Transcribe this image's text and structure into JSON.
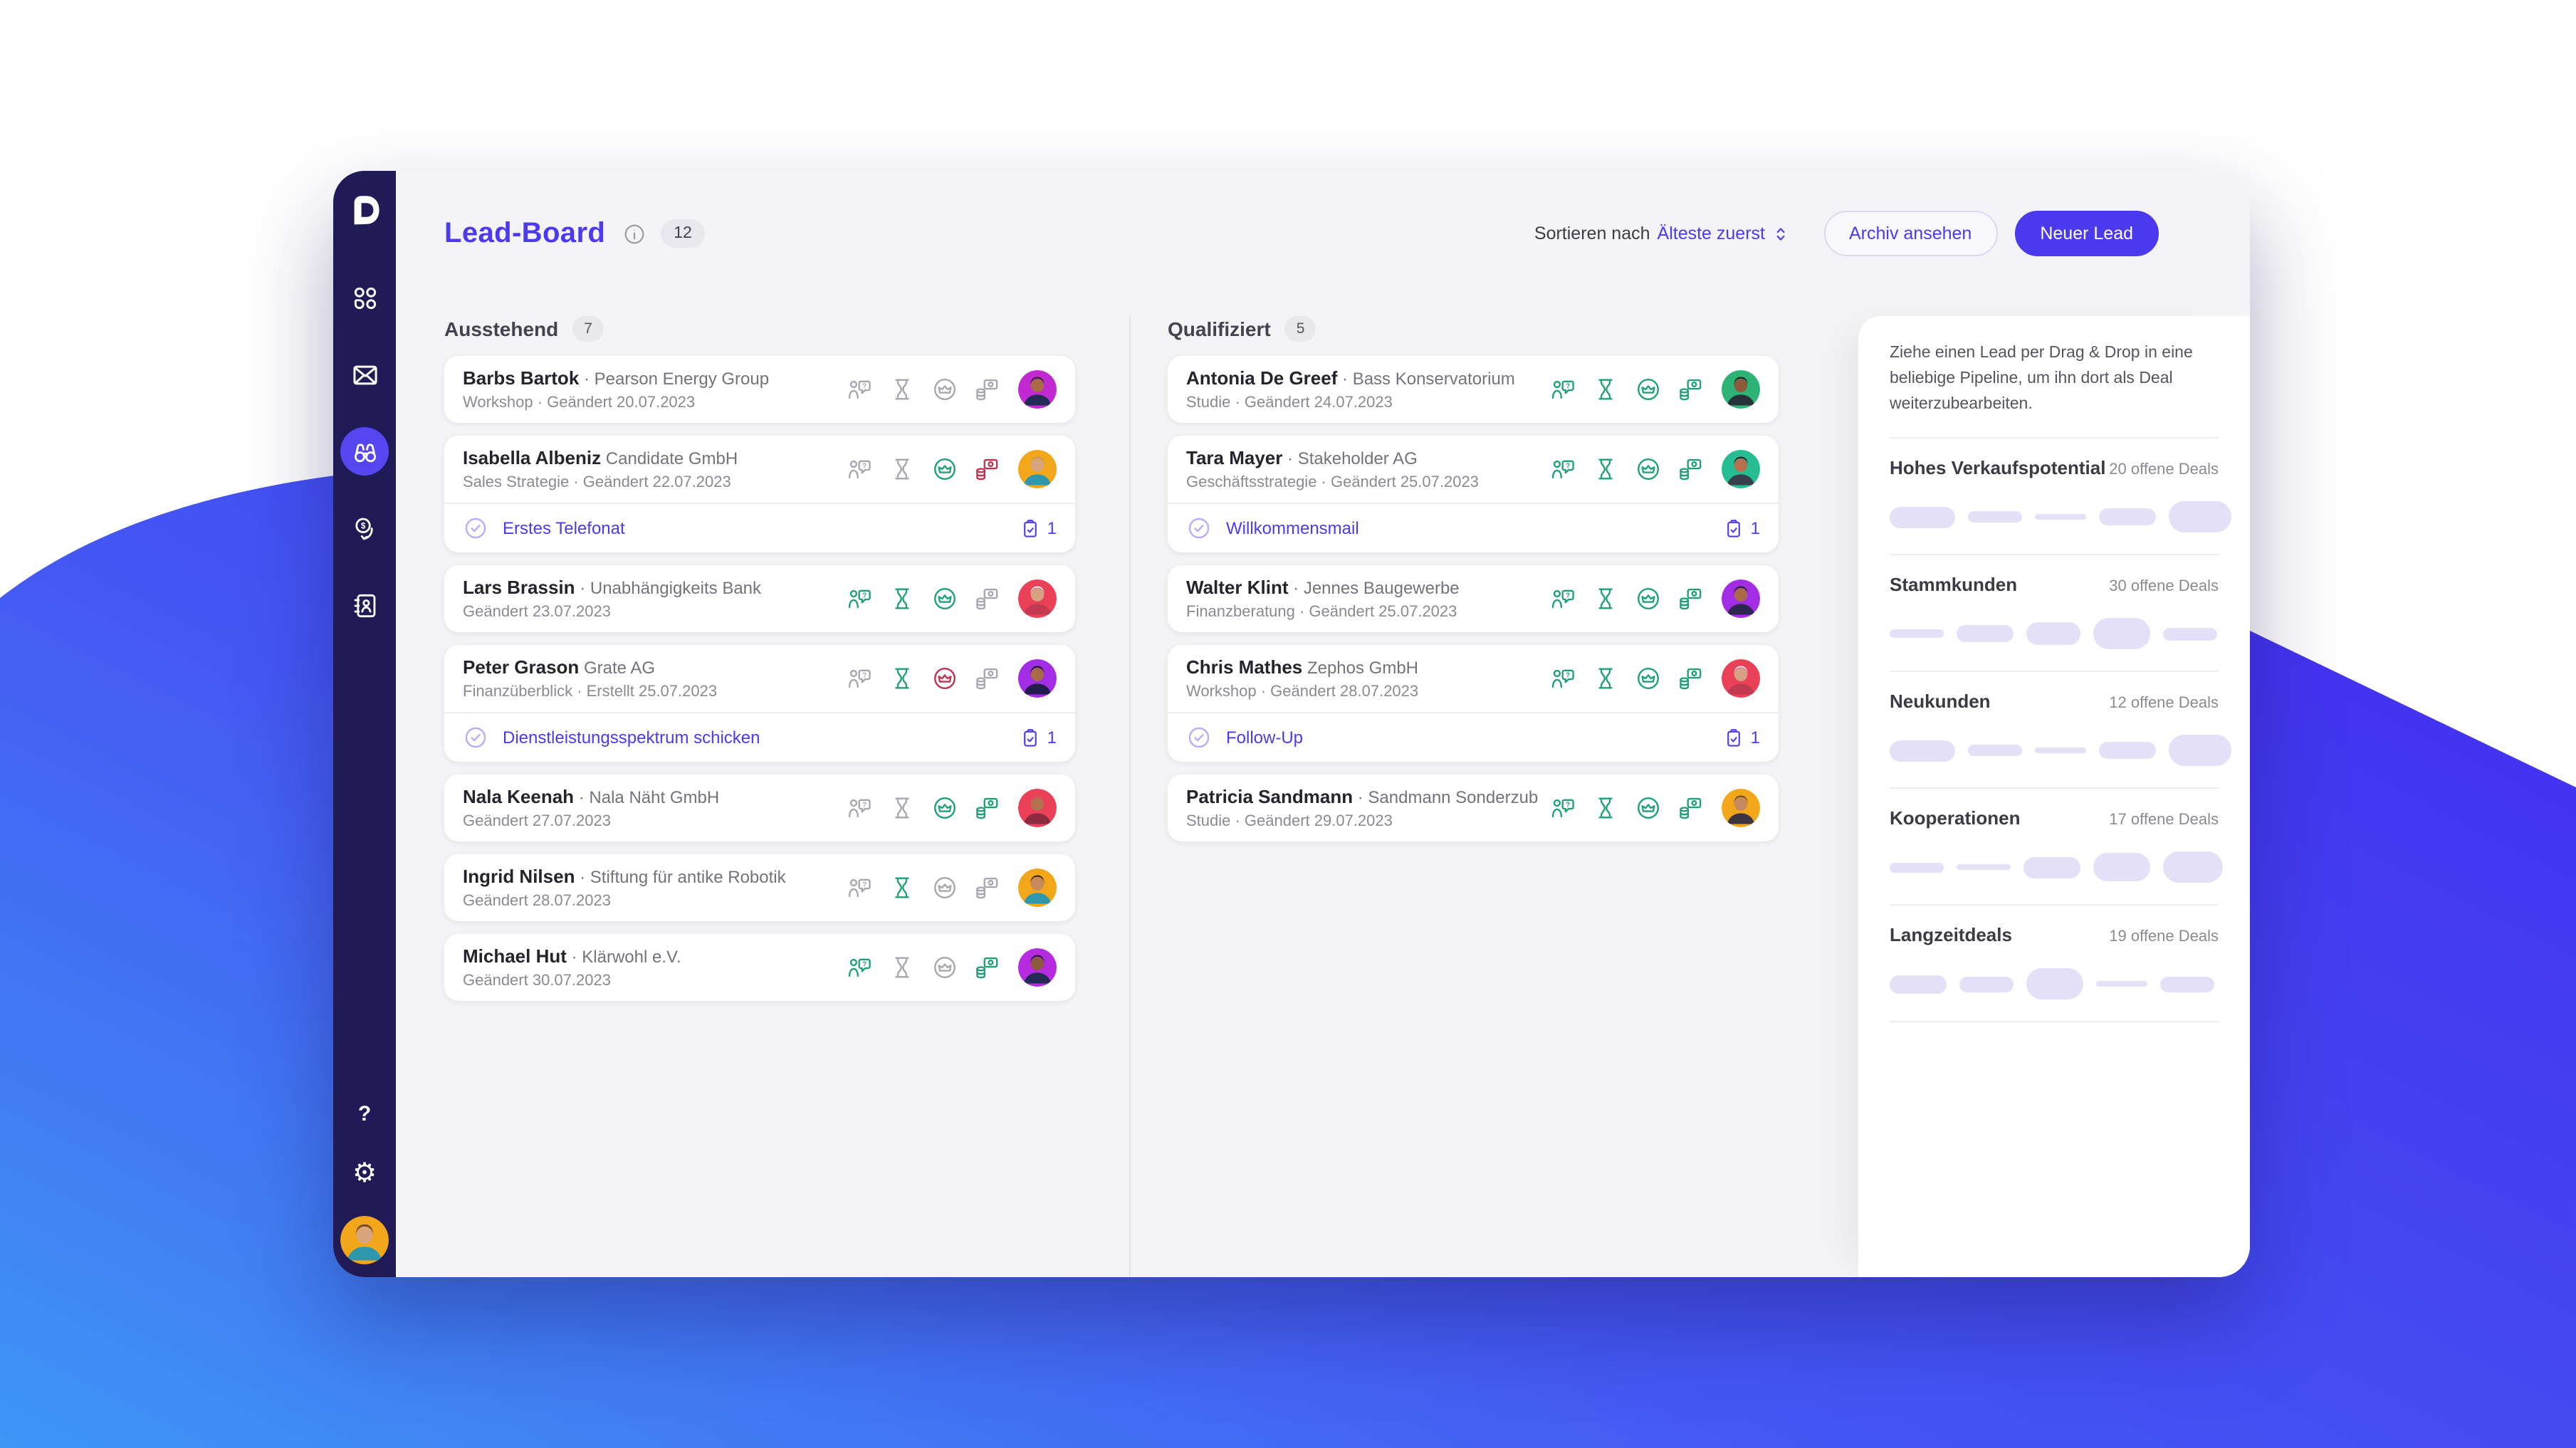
{
  "header": {
    "title": "Lead-Board",
    "count": "12",
    "sort_label": "Sortieren nach",
    "sort_value": "Älteste zuerst",
    "archive_button": "Archiv ansehen",
    "new_lead_button": "Neuer Lead"
  },
  "sidebar": {
    "items": [
      {
        "icon": "grid",
        "name": "dashboard",
        "active": false
      },
      {
        "icon": "mail",
        "name": "mail",
        "active": false
      },
      {
        "icon": "binoculars",
        "name": "leads",
        "active": true
      },
      {
        "icon": "deals",
        "name": "deals",
        "active": false
      },
      {
        "icon": "contacts",
        "name": "contacts",
        "active": false
      }
    ],
    "help_label": "?",
    "avatar": {
      "bg": "#f2a71b",
      "skin": "#d9a57e",
      "hair": "#6e4a33",
      "shirt": "#2e96ad"
    }
  },
  "columns": [
    {
      "name": "Ausstehend",
      "count": "7",
      "cards": [
        {
          "name": "Barbs Bartok",
          "sep": true,
          "org": "Pearson Energy Group",
          "meta": "Workshop · Geändert 20.07.2023",
          "icons": [
            "gray",
            "gray",
            "gray",
            "gray"
          ],
          "avatar": {
            "bg": "#c22ad1",
            "skin": "#a96a47",
            "hair": "#2f2430",
            "shirt": "#232a56"
          }
        },
        {
          "name": "Isabella Albeniz",
          "sep": false,
          "org": "Candidate GmbH",
          "meta": "Sales Strategie · Geändert 22.07.2023",
          "icons": [
            "gray",
            "gray",
            "green",
            "red"
          ],
          "avatar": {
            "bg": "#f2a71b",
            "skin": "#d9a57e",
            "hair": "#c9956b",
            "shirt": "#2e96ad"
          },
          "task": {
            "label": "Erstes Telefonat",
            "count": "1"
          }
        },
        {
          "name": "Lars Brassin",
          "sep": true,
          "org": "Unabhängigkeits Bank",
          "meta": "Geändert 23.07.2023",
          "icons": [
            "green",
            "green",
            "green",
            "gray"
          ],
          "avatar": {
            "bg": "#ea4159",
            "skin": "#d7a183",
            "hair": "#e3e3e6",
            "shirt": "#c13a50"
          }
        },
        {
          "name": "Peter Grason",
          "sep": false,
          "org": "Grate AG",
          "meta": "Finanzüberblick · Erstellt 25.07.2023",
          "icons": [
            "gray",
            "green",
            "red",
            "gray"
          ],
          "avatar": {
            "bg": "#a32de4",
            "skin": "#a96a47",
            "hair": "#1f1b2e",
            "shirt": "#231d4f"
          },
          "task": {
            "label": "Dienstleistungsspektrum schicken",
            "count": "1"
          }
        },
        {
          "name": "Nala Keenah",
          "sep": true,
          "org": "Nala Näht GmbH",
          "meta": "Geändert 27.07.2023",
          "icons": [
            "gray",
            "gray",
            "green",
            "green"
          ],
          "avatar": {
            "bg": "#ea4159",
            "skin": "#b5714d",
            "hair": "#d94f63",
            "shirt": "#8c2b3f"
          }
        },
        {
          "name": "Ingrid Nilsen",
          "sep": true,
          "org": "Stiftung für antike Robotik",
          "meta": "Geändert 28.07.2023",
          "icons": [
            "gray",
            "green",
            "gray",
            "gray"
          ],
          "avatar": {
            "bg": "#f2a71b",
            "skin": "#c78a5f",
            "hair": "#3a2a22",
            "shirt": "#2e96ad"
          }
        },
        {
          "name": "Michael Hut",
          "sep": true,
          "org": "Klärwohl e.V.",
          "meta": "Geändert 30.07.2023",
          "icons": [
            "green",
            "gray",
            "gray",
            "green"
          ],
          "avatar": {
            "bg": "#b62ae0",
            "skin": "#8d5a3b",
            "hair": "#241f38",
            "shirt": "#232a56"
          }
        }
      ]
    },
    {
      "name": "Qualifiziert",
      "count": "5",
      "cards": [
        {
          "name": "Antonia De Greef",
          "sep": true,
          "org": "Bass Konservatorium",
          "meta": "Studie · Geändert 24.07.2023",
          "icons": [
            "green",
            "green",
            "green",
            "green"
          ],
          "avatar": {
            "bg": "#2eb377",
            "skin": "#8d5a3b",
            "hair": "#1f1b24",
            "shirt": "#27313a"
          }
        },
        {
          "name": "Tara Mayer",
          "sep": true,
          "org": "Stakeholder AG",
          "meta": "Geschäftsstrategie · Geändert 25.07.2023",
          "icons": [
            "green",
            "green",
            "green",
            "green"
          ],
          "avatar": {
            "bg": "#27bd92",
            "skin": "#b5714d",
            "hair": "#221d2b",
            "shirt": "#35404c"
          },
          "task": {
            "label": "Willkommensmail",
            "count": "1"
          }
        },
        {
          "name": "Walter Klint",
          "sep": true,
          "org": "Jennes Baugewerbe",
          "meta": "Finanzberatung · Geändert 25.07.2023",
          "icons": [
            "green",
            "green",
            "green",
            "green"
          ],
          "avatar": {
            "bg": "#a32de4",
            "skin": "#a96a47",
            "hair": "#2b2133",
            "shirt": "#2b2550"
          }
        },
        {
          "name": "Chris Mathes",
          "sep": false,
          "org": "Zephos GmbH",
          "meta": "Workshop · Geändert 28.07.2023",
          "icons": [
            "green",
            "green",
            "green",
            "green"
          ],
          "avatar": {
            "bg": "#ea4159",
            "skin": "#d7a183",
            "hair": "#d9d9dd",
            "shirt": "#c13a50"
          },
          "task": {
            "label": "Follow-Up",
            "count": "1"
          }
        },
        {
          "name": "Patricia Sandmann",
          "sep": true,
          "org": "Sandmann Sonderzubehör",
          "meta": "Studie · Geändert 29.07.2023",
          "icons": [
            "green",
            "green",
            "green",
            "green"
          ],
          "avatar": {
            "bg": "#f2a71b",
            "skin": "#c78a5f",
            "hair": "#6e4a33",
            "shirt": "#3b3542"
          }
        }
      ]
    }
  ],
  "panel": {
    "hint": "Ziehe einen Lead per Drag & Drop in eine beliebige Pipeline, um ihn dort als Deal weiterzubearbeiten.",
    "pipelines": [
      {
        "name": "Hohes Verkaufspotential",
        "deals": "20 offene Deals",
        "pills": [
          [
            46,
            15
          ],
          [
            38,
            8
          ],
          [
            36,
            4
          ],
          [
            40,
            12
          ],
          [
            44,
            22
          ]
        ]
      },
      {
        "name": "Stammkunden",
        "deals": "30 offene Deals",
        "pills": [
          [
            38,
            6
          ],
          [
            40,
            12
          ],
          [
            38,
            16
          ],
          [
            40,
            22
          ],
          [
            38,
            9
          ]
        ]
      },
      {
        "name": "Neukunden",
        "deals": "12 offene Deals",
        "pills": [
          [
            46,
            15
          ],
          [
            38,
            8
          ],
          [
            36,
            4
          ],
          [
            40,
            12
          ],
          [
            44,
            22
          ]
        ]
      },
      {
        "name": "Kooperationen",
        "deals": "17 offene Deals",
        "pills": [
          [
            38,
            7
          ],
          [
            38,
            4
          ],
          [
            40,
            15
          ],
          [
            40,
            20
          ],
          [
            42,
            22
          ]
        ]
      },
      {
        "name": "Langzeitdeals",
        "deals": "19 offene Deals",
        "pills": [
          [
            40,
            13
          ],
          [
            38,
            11
          ],
          [
            40,
            22
          ],
          [
            36,
            4
          ],
          [
            38,
            11
          ]
        ]
      }
    ]
  },
  "colors": {
    "accent": "#4c3af0",
    "sidebar": "#201a57",
    "active_item": "#5646ef",
    "icon_green": "#1fa077",
    "icon_red": "#bf3352",
    "icon_gray": "#a7a6b1",
    "skeleton": "#e4e0f8",
    "background_blue_left": "#3f8cf4",
    "background_blue_right": "#4331f1"
  }
}
